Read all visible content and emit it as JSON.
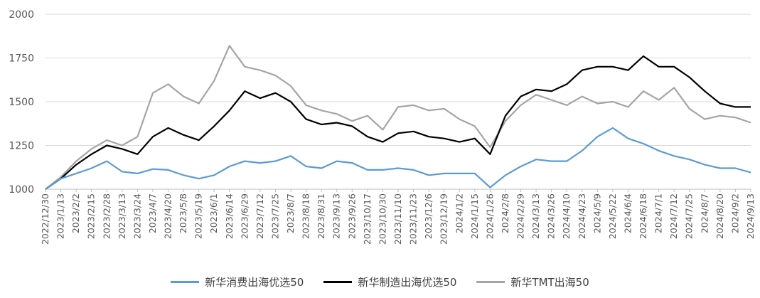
{
  "chart_data": {
    "type": "line",
    "title": "",
    "xlabel": "",
    "ylabel": "",
    "ylim": [
      1000,
      2000
    ],
    "yticks": [
      "1000",
      "1250",
      "1500",
      "1750",
      "2000"
    ],
    "grid": true,
    "legend_position": "bottom",
    "x": [
      "2022/12/30",
      "2023/1/13",
      "2023/2/2",
      "2023/2/15",
      "2023/2/28",
      "2023/3/13",
      "2023/3/24",
      "2023/4/7",
      "2023/4/20",
      "2023/5/8",
      "2023/5/19",
      "2023/6/1",
      "2023/6/14",
      "2023/6/29",
      "2023/7/12",
      "2023/7/25",
      "2023/8/7",
      "2023/8/18",
      "2023/8/31",
      "2023/9/13",
      "2023/9/26",
      "2023/10/17",
      "2023/10/30",
      "2023/11/10",
      "2023/11/23",
      "2023/12/6",
      "2023/12/19",
      "2024/1/2",
      "2024/1/15",
      "2024/1/26",
      "2024/2/8",
      "2024/2/29",
      "2024/3/13",
      "2024/3/26",
      "2024/4/10",
      "2024/4/23",
      "2024/5/9",
      "2024/5/22",
      "2024/6/4",
      "2024/6/18",
      "2024/7/1",
      "2024/7/12",
      "2024/7/25",
      "2024/8/7",
      "2024/8/20",
      "2024/9/2",
      "2024/9/13"
    ],
    "series": [
      {
        "name": "新华消费出海优选50",
        "color": "#5b9bd5",
        "values": [
          1000,
          1060,
          1090,
          1120,
          1160,
          1100,
          1090,
          1115,
          1110,
          1080,
          1060,
          1080,
          1130,
          1160,
          1150,
          1160,
          1190,
          1130,
          1120,
          1160,
          1150,
          1110,
          1110,
          1120,
          1110,
          1080,
          1090,
          1090,
          1090,
          1010,
          1080,
          1130,
          1170,
          1160,
          1160,
          1220,
          1300,
          1350,
          1290,
          1260,
          1220,
          1190,
          1170,
          1140,
          1120,
          1120,
          1095
        ]
      },
      {
        "name": "新华制造出海优选50",
        "color": "#000000",
        "values": [
          1000,
          1060,
          1140,
          1200,
          1250,
          1230,
          1200,
          1300,
          1350,
          1310,
          1280,
          1360,
          1450,
          1560,
          1520,
          1550,
          1500,
          1400,
          1370,
          1380,
          1360,
          1300,
          1270,
          1320,
          1330,
          1300,
          1290,
          1270,
          1290,
          1200,
          1420,
          1530,
          1570,
          1560,
          1600,
          1680,
          1700,
          1700,
          1680,
          1760,
          1700,
          1700,
          1640,
          1560,
          1490,
          1470,
          1470
        ]
      },
      {
        "name": "新华TMT出海50",
        "color": "#a5a5a5",
        "values": [
          1000,
          1070,
          1160,
          1230,
          1280,
          1250,
          1300,
          1550,
          1600,
          1530,
          1490,
          1620,
          1820,
          1700,
          1680,
          1650,
          1590,
          1480,
          1450,
          1430,
          1390,
          1420,
          1340,
          1470,
          1480,
          1450,
          1460,
          1400,
          1360,
          1240,
          1390,
          1480,
          1540,
          1510,
          1480,
          1530,
          1490,
          1500,
          1470,
          1560,
          1510,
          1580,
          1460,
          1400,
          1420,
          1410,
          1380
        ]
      }
    ]
  }
}
